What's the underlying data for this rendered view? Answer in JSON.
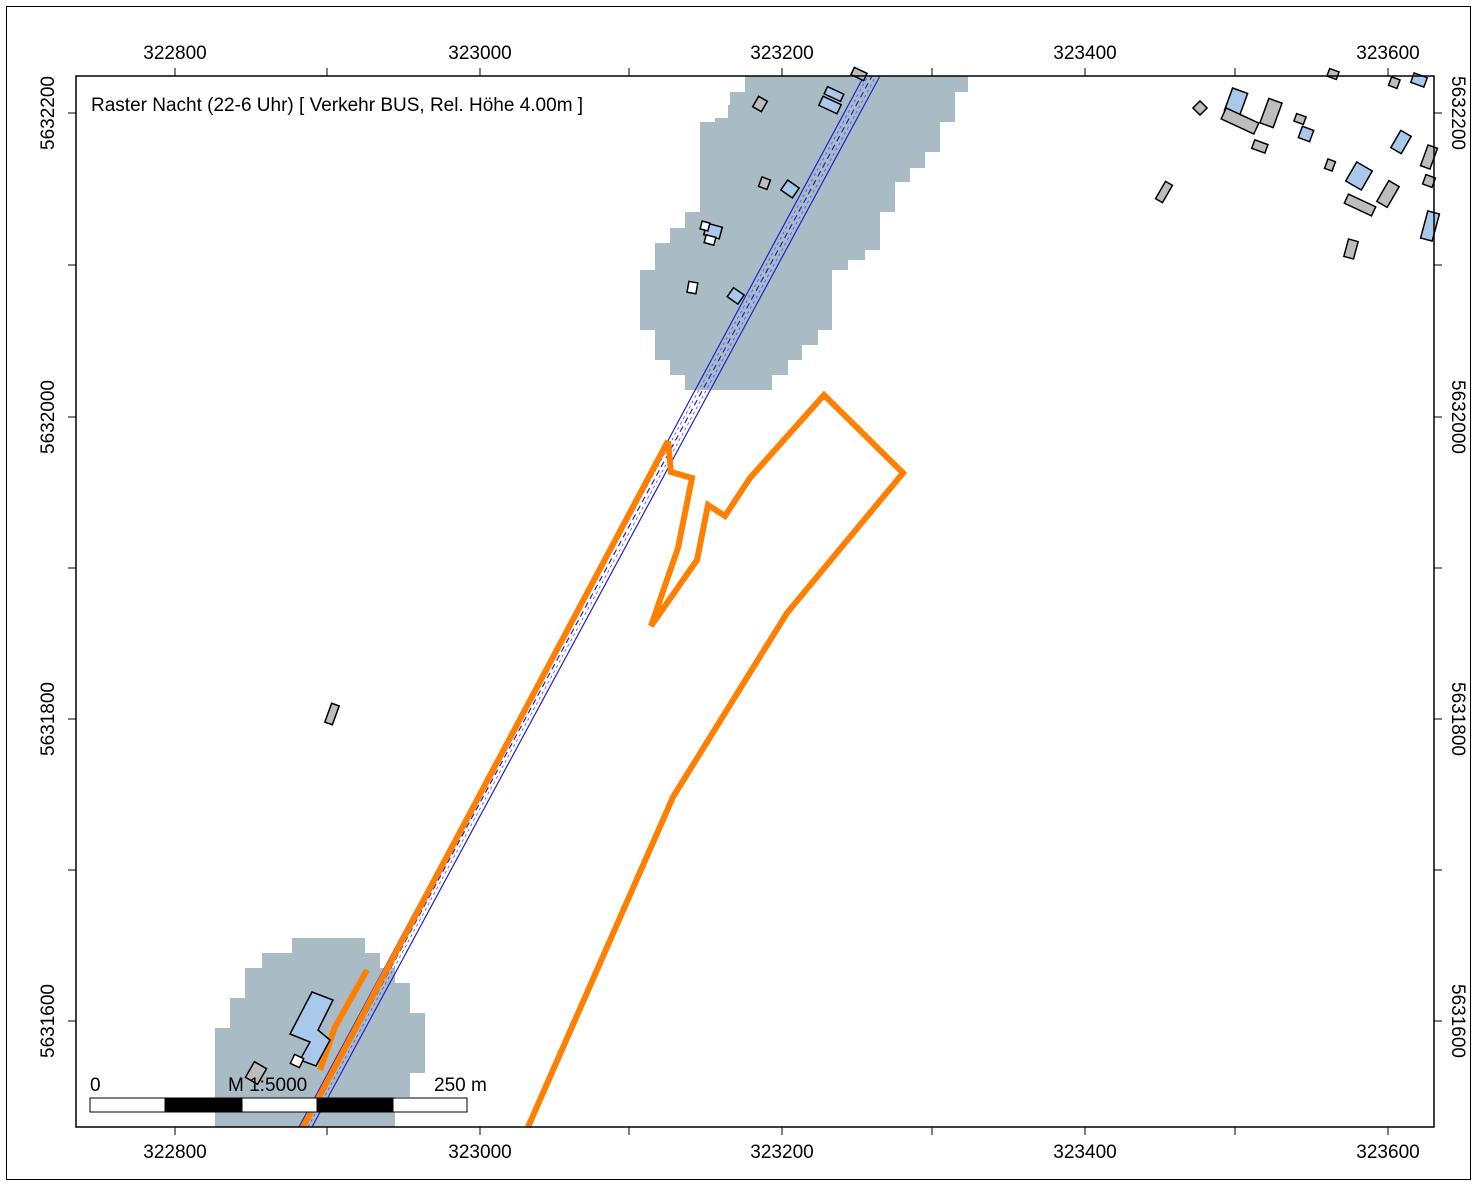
{
  "map": {
    "title": "Raster Nacht (22-6 Uhr)  [ Verkehr BUS, Rel. Höhe  4.00m ]",
    "x_ticks": [
      "322800",
      "323000",
      "323200",
      "323400",
      "323600"
    ],
    "y_ticks": [
      "5632200",
      "5632000",
      "5631800",
      "5631600"
    ],
    "scale": {
      "start_label": "0",
      "ratio_label": "M 1:5000",
      "end_label": "250 m"
    },
    "colors": {
      "noise_raster": "#a9bcc6",
      "road_line": "#2020d0",
      "boundary_line": "#ff8000",
      "building_blue": "#a9c9ec",
      "building_gray": "#bdbdbd"
    },
    "layers": [
      "noise-raster",
      "road",
      "planning-boundary",
      "buildings"
    ]
  }
}
